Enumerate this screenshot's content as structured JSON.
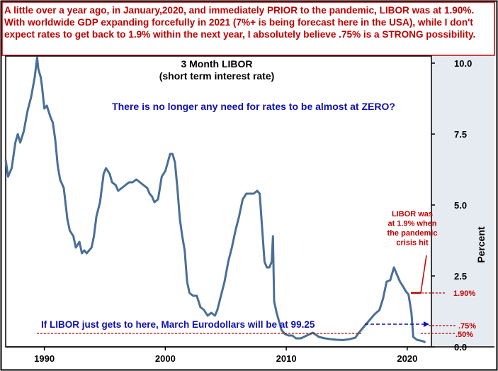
{
  "header_note": "A little over a year ago, in January,2020, and immediately PRIOR to the pandemic, LIBOR was at 1.90%. With worldwide GDP expanding forcefully in 2021 (7%+ is being forecast here in the USA), while I don't expect rates to get back to 1.9% within the next year, I absolutely believe .75% is a STRONG possibility.",
  "colors": {
    "line": "#4a6f96",
    "annotation_red": "#c00000",
    "annotation_blue": "#1010b0",
    "axis_panel": "#e6ebf1",
    "border": "#000000"
  },
  "chart_data": {
    "type": "line",
    "title": "3 Month LIBOR",
    "subtitle": "(short term interest rate)",
    "ylabel": "Percent",
    "xlabel": "",
    "xlim": [
      1986.8,
      2022.0
    ],
    "ylim": [
      0,
      10.25
    ],
    "xticks": [
      1990,
      2000,
      2010,
      2020
    ],
    "yticks": [
      0.0,
      2.5,
      5.0,
      7.5,
      10.0
    ],
    "ytick_labels": [
      "0.0",
      "2.5",
      "5.0",
      "7.5",
      "10.0"
    ],
    "grid": false,
    "series": [
      {
        "x": [
          1986.8,
          1987.0,
          1987.3,
          1987.6,
          1987.8,
          1988.0,
          1988.3,
          1988.6,
          1988.9,
          1989.2,
          1989.4,
          1989.5,
          1989.7,
          1989.8,
          1990.0,
          1990.2,
          1990.5,
          1990.7,
          1990.9,
          1991.1,
          1991.3,
          1991.6,
          1991.9,
          1992.1,
          1992.4,
          1992.6,
          1992.9,
          1993.1,
          1993.3,
          1993.5,
          1993.7,
          1993.9,
          1994.1,
          1994.3,
          1994.6,
          1994.9,
          1995.1,
          1995.4,
          1995.6,
          1995.9,
          1996.1,
          1996.4,
          1996.7,
          1997.0,
          1997.3,
          1997.6,
          1997.9,
          1998.2,
          1998.5,
          1998.7,
          1998.9,
          1999.1,
          1999.4,
          1999.7,
          2000.0,
          2000.2,
          2000.4,
          2000.6,
          2000.8,
          2001.0,
          2001.2,
          2001.4,
          2001.6,
          2001.8,
          2002.0,
          2002.3,
          2002.6,
          2002.9,
          2003.2,
          2003.5,
          2003.8,
          2004.1,
          2004.3,
          2004.6,
          2004.9,
          2005.2,
          2005.5,
          2005.8,
          2006.1,
          2006.4,
          2006.7,
          2007.0,
          2007.3,
          2007.6,
          2007.8,
          2008.0,
          2008.2,
          2008.4,
          2008.6,
          2008.8,
          2008.9,
          2009.0,
          2009.2,
          2009.4,
          2009.6,
          2009.9,
          2010.2,
          2010.5,
          2010.8,
          2011.2,
          2011.7,
          2012.2,
          2012.7,
          2013.2,
          2013.7,
          2014.2,
          2014.7,
          2015.2,
          2015.7,
          2016.0,
          2016.3,
          2016.7,
          2017.0,
          2017.3,
          2017.7,
          2018.0,
          2018.3,
          2018.6,
          2018.9,
          2019.1,
          2019.4,
          2019.7,
          2019.9,
          2020.1,
          2020.2,
          2020.35,
          2020.5,
          2020.8,
          2021.1,
          2021.3,
          2021.5
        ],
        "y": [
          6.6,
          6.0,
          6.3,
          7.2,
          7.5,
          7.2,
          7.6,
          8.3,
          8.8,
          9.5,
          10.2,
          9.8,
          9.5,
          9.2,
          8.4,
          8.5,
          8.1,
          7.9,
          7.3,
          6.4,
          5.9,
          5.6,
          4.5,
          4.1,
          3.9,
          3.5,
          3.7,
          3.3,
          3.4,
          3.3,
          3.4,
          3.5,
          3.9,
          4.6,
          5.1,
          6.1,
          6.3,
          6.1,
          5.8,
          5.7,
          5.5,
          5.6,
          5.7,
          5.8,
          5.8,
          5.9,
          5.8,
          5.7,
          5.6,
          5.4,
          5.3,
          5.1,
          5.2,
          6.0,
          6.2,
          6.5,
          6.8,
          6.8,
          6.5,
          5.6,
          4.5,
          3.9,
          3.4,
          2.3,
          1.9,
          1.8,
          1.8,
          1.4,
          1.3,
          1.1,
          1.2,
          1.1,
          1.3,
          1.8,
          2.3,
          3.0,
          3.5,
          4.1,
          4.6,
          5.2,
          5.4,
          5.4,
          5.4,
          5.5,
          5.4,
          4.2,
          3.0,
          2.8,
          2.8,
          3.0,
          3.9,
          1.6,
          1.2,
          0.9,
          0.6,
          0.45,
          0.4,
          0.4,
          0.3,
          0.3,
          0.4,
          0.5,
          0.35,
          0.3,
          0.27,
          0.25,
          0.24,
          0.27,
          0.32,
          0.5,
          0.65,
          0.85,
          1.0,
          1.15,
          1.3,
          1.7,
          2.3,
          2.35,
          2.8,
          2.6,
          2.3,
          2.1,
          1.95,
          1.85,
          1.6,
          1.2,
          0.35,
          0.25,
          0.22,
          0.2,
          0.16
        ]
      }
    ],
    "annotations": {
      "question": "There is no longer any need for rates to be almost at ZERO?",
      "callout": "If LIBOR just gets to here, March Eurodollars  will be at 99.25",
      "callout_level": 0.75,
      "note_lines": [
        "LIBOR was",
        "at 1.9% when",
        "the pandemic",
        "crisis hit"
      ],
      "note_point": {
        "x": 2020.1,
        "y": 1.9
      },
      "level_markers": [
        {
          "label": "1.90%",
          "value": 1.9
        },
        {
          "label": ".75%",
          "value": 0.75
        },
        {
          "label": ".50%",
          "value": 0.5
        }
      ]
    }
  }
}
